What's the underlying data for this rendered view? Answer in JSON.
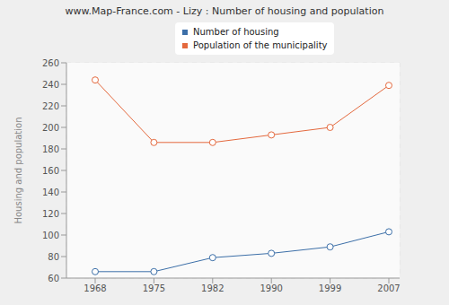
{
  "chart_data": {
    "type": "line",
    "title": "www.Map-France.com - Lizy : Number of housing and population",
    "y_label": "Housing and population",
    "categories": [
      "1968",
      "1975",
      "1982",
      "1990",
      "1999",
      "2007"
    ],
    "series": [
      {
        "name": "Number of housing",
        "color": "#3c6fa8",
        "marker": "circle",
        "values": [
          66,
          66,
          79,
          83,
          89,
          103
        ]
      },
      {
        "name": "Population of the municipality",
        "color": "#e4693e",
        "marker": "circle",
        "values": [
          244,
          186,
          186,
          193,
          200,
          239
        ]
      }
    ],
    "ylim": [
      60,
      260
    ],
    "yticks": [
      60,
      80,
      100,
      120,
      140,
      160,
      180,
      200,
      220,
      240,
      260
    ],
    "grid": true,
    "legend": "top"
  }
}
